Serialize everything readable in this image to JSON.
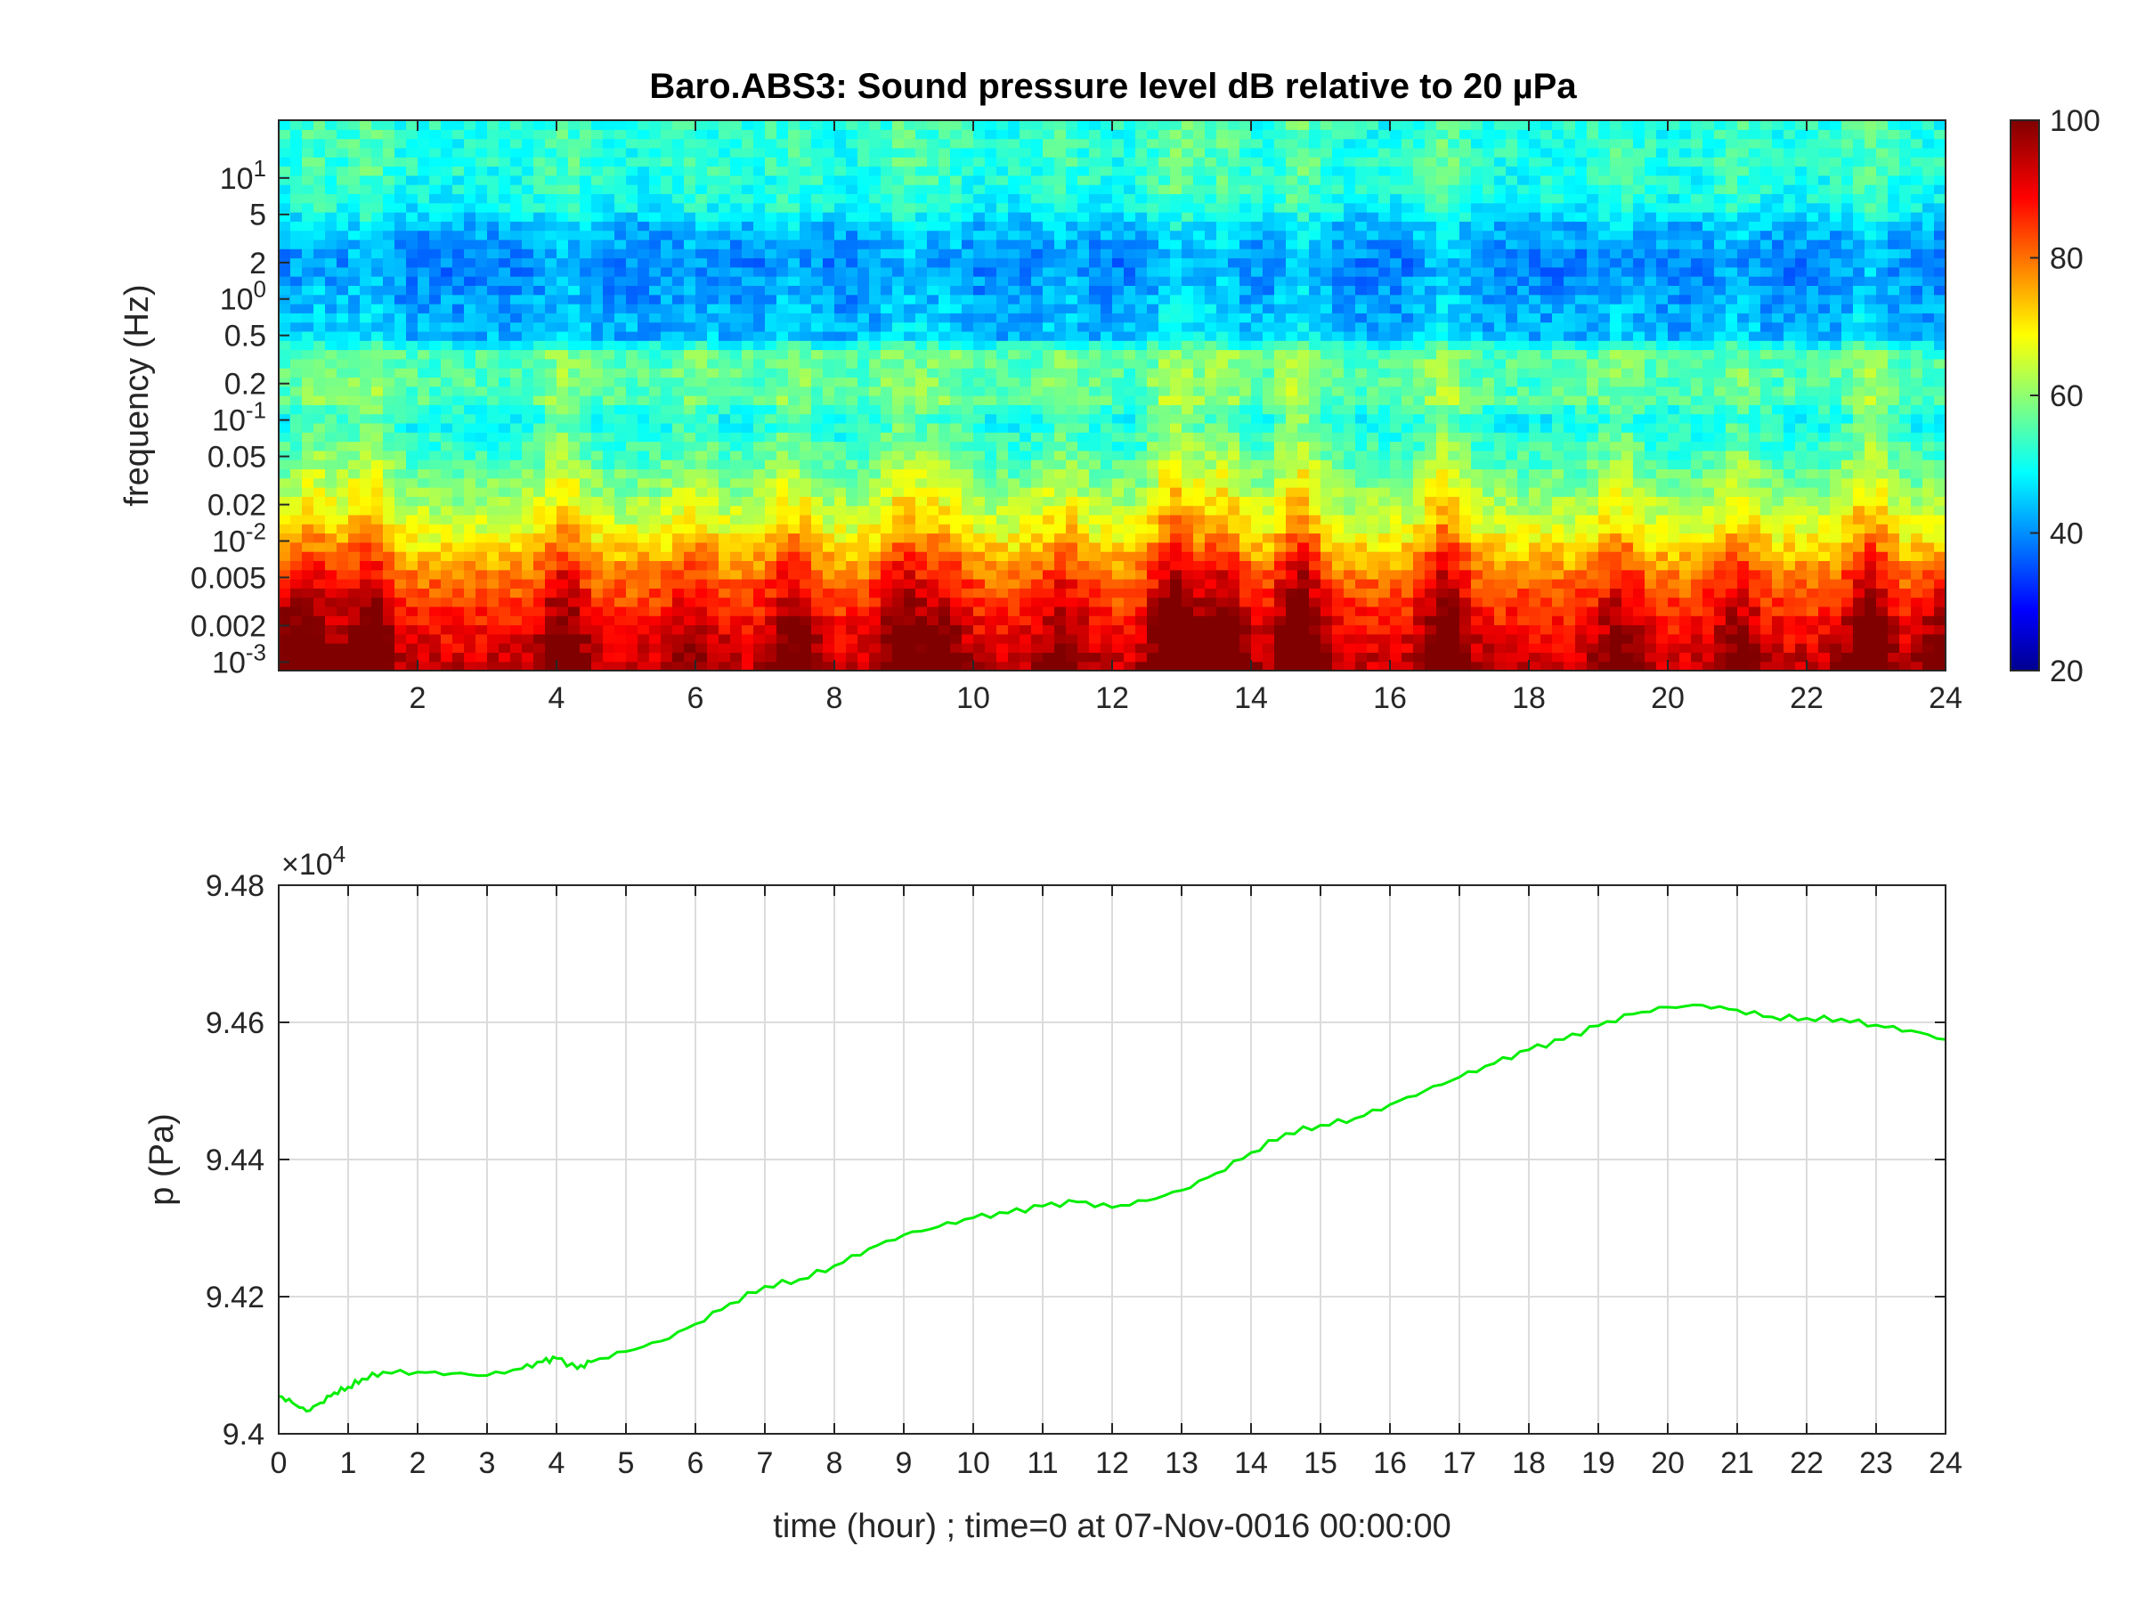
{
  "figure": {
    "background": "#ffffff",
    "line_color": "#00ee00",
    "axis_color": "#262626"
  },
  "chart_data": [
    {
      "type": "heatmap",
      "title": "Baro.ABS3: Sound pressure level dB relative to 20 µPa",
      "xlabel": "",
      "ylabel": "frequency (Hz)",
      "xlim": [
        0,
        24
      ],
      "ylim": [
        0.00085,
        30
      ],
      "yscale": "log",
      "x_ticks": [
        2,
        4,
        6,
        8,
        10,
        12,
        14,
        16,
        18,
        20,
        22,
        24
      ],
      "y_ticks": [
        {
          "value": 0.001,
          "label": "10^-3"
        },
        {
          "value": 0.002,
          "label": "0.002"
        },
        {
          "value": 0.005,
          "label": "0.005"
        },
        {
          "value": 0.01,
          "label": "10^-2"
        },
        {
          "value": 0.02,
          "label": "0.02"
        },
        {
          "value": 0.05,
          "label": "0.05"
        },
        {
          "value": 0.1,
          "label": "10^-1"
        },
        {
          "value": 0.2,
          "label": "0.2"
        },
        {
          "value": 0.5,
          "label": "0.5"
        },
        {
          "value": 1,
          "label": "10^0"
        },
        {
          "value": 2,
          "label": "2"
        },
        {
          "value": 5,
          "label": "5"
        },
        {
          "value": 10,
          "label": "10^1"
        }
      ],
      "colorbar": {
        "colormap": "jet",
        "clim": [
          20,
          100
        ],
        "ticks": [
          20,
          40,
          60,
          80,
          100
        ]
      },
      "level_profile_db": [
        {
          "f": 0.001,
          "db": 94
        },
        {
          "f": 0.002,
          "db": 89
        },
        {
          "f": 0.004,
          "db": 83
        },
        {
          "f": 0.007,
          "db": 76
        },
        {
          "f": 0.012,
          "db": 68
        },
        {
          "f": 0.02,
          "db": 63
        },
        {
          "f": 0.05,
          "db": 55
        },
        {
          "f": 0.11,
          "db": 50
        },
        {
          "f": 0.14,
          "db": 56
        },
        {
          "f": 0.35,
          "db": 56
        },
        {
          "f": 0.5,
          "db": 44
        },
        {
          "f": 1,
          "db": 42
        },
        {
          "f": 2,
          "db": 40
        },
        {
          "f": 4,
          "db": 44
        },
        {
          "f": 6,
          "db": 50
        },
        {
          "f": 12,
          "db": 52
        },
        {
          "f": 30,
          "db": 52
        }
      ],
      "events": [
        {
          "t": 0.5,
          "level": 0.6
        },
        {
          "t": 1.3,
          "level": 0.8
        },
        {
          "t": 4.1,
          "level": 0.7
        },
        {
          "t": 6.0,
          "level": 0.4
        },
        {
          "t": 7.4,
          "level": 0.6
        },
        {
          "t": 9.0,
          "level": 0.7
        },
        {
          "t": 9.6,
          "level": 0.5
        },
        {
          "t": 11.3,
          "level": 0.5
        },
        {
          "t": 12.9,
          "level": 1.0
        },
        {
          "t": 13.6,
          "level": 0.8
        },
        {
          "t": 14.7,
          "level": 1.0
        },
        {
          "t": 16.8,
          "level": 0.9
        },
        {
          "t": 19.3,
          "level": 0.5
        },
        {
          "t": 21.0,
          "level": 0.5
        },
        {
          "t": 22.9,
          "level": 0.8
        }
      ]
    },
    {
      "type": "line",
      "title": "",
      "xlabel": "time (hour) ; time=0 at 07-Nov-0016 00:00:00",
      "ylabel": "p (Pa)",
      "xlim": [
        0,
        24
      ],
      "ylim": [
        94000,
        94800
      ],
      "y_exponent_label": "×10^4",
      "x_ticks": [
        0,
        1,
        2,
        3,
        4,
        5,
        6,
        7,
        8,
        9,
        10,
        11,
        12,
        13,
        14,
        15,
        16,
        17,
        18,
        19,
        20,
        21,
        22,
        23,
        24
      ],
      "y_ticks": [
        {
          "value": 94000,
          "label": "9.4"
        },
        {
          "value": 94200,
          "label": "9.42"
        },
        {
          "value": 94400,
          "label": "9.44"
        },
        {
          "value": 94600,
          "label": "9.46"
        },
        {
          "value": 94800,
          "label": "9.48"
        }
      ],
      "grid": true,
      "series": [
        {
          "color": "#00ee00",
          "x": [
            0,
            0.2,
            0.4,
            0.6,
            0.8,
            1.0,
            1.2,
            1.5,
            2.0,
            2.5,
            3.0,
            3.5,
            3.8,
            4.0,
            4.3,
            4.5,
            5.0,
            5.5,
            6.0,
            6.5,
            7.0,
            7.5,
            8.0,
            8.5,
            9.0,
            9.5,
            10.0,
            10.5,
            11.0,
            11.5,
            12.0,
            12.5,
            13.0,
            13.5,
            14.0,
            14.5,
            15.0,
            15.5,
            16.0,
            16.5,
            17.0,
            17.5,
            18.0,
            18.5,
            19.0,
            19.5,
            20.0,
            20.5,
            21.0,
            21.5,
            22.0,
            22.5,
            23.0,
            23.5,
            24.0
          ],
          "y": [
            94055,
            94045,
            94033,
            94045,
            94060,
            94068,
            94080,
            94090,
            94090,
            94088,
            94085,
            94095,
            94105,
            94110,
            94095,
            94105,
            94120,
            94135,
            94160,
            94190,
            94215,
            94225,
            94245,
            94270,
            94290,
            94302,
            94315,
            94322,
            94332,
            94338,
            94330,
            94340,
            94355,
            94380,
            94410,
            94438,
            94450,
            94460,
            94480,
            94500,
            94520,
            94540,
            94560,
            94575,
            94595,
            94612,
            94622,
            94625,
            94618,
            94608,
            94606,
            94605,
            94596,
            94588,
            94575
          ]
        }
      ]
    }
  ]
}
